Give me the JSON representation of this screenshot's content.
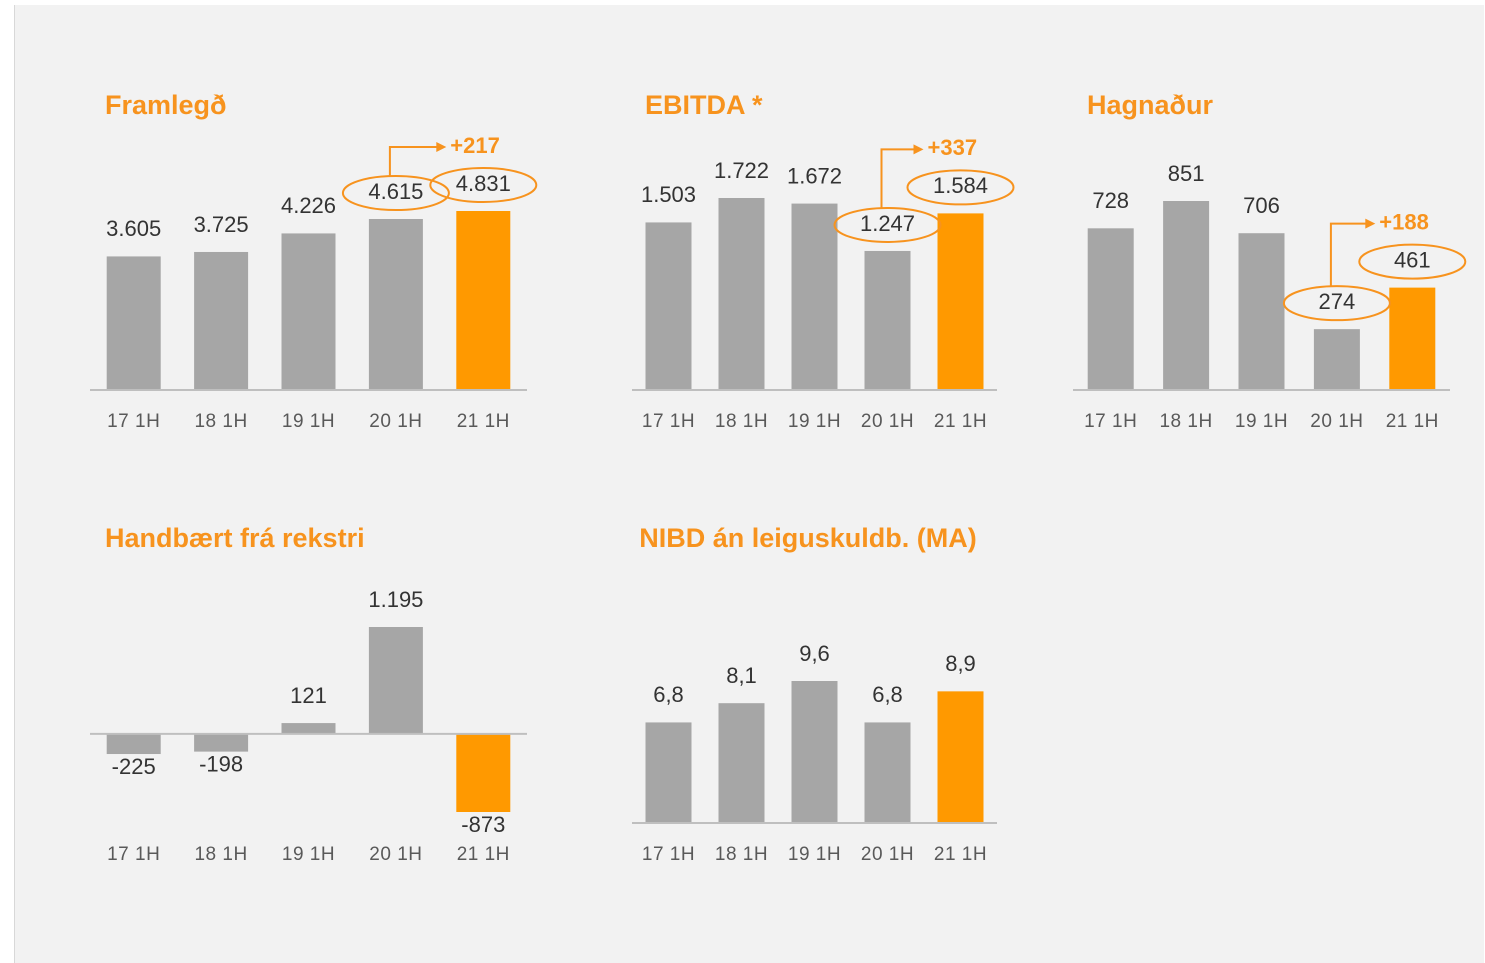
{
  "chart_data": [
    {
      "type": "bar",
      "title": "Framlegð",
      "categories": [
        "17 1H",
        "18 1H",
        "19 1H",
        "20 1H",
        "21 1H"
      ],
      "values": [
        3605,
        3725,
        4226,
        4615,
        4831
      ],
      "value_labels": [
        "3.605",
        "3.725",
        "4.226",
        "4.615",
        "4.831"
      ],
      "colors": [
        "#a6a6a6",
        "#a6a6a6",
        "#a6a6a6",
        "#a6a6a6",
        "#ff9900"
      ],
      "annotation": "+217"
    },
    {
      "type": "bar",
      "title": "EBITDA *",
      "categories": [
        "17 1H",
        "18 1H",
        "19 1H",
        "20 1H",
        "21 1H"
      ],
      "values": [
        1503,
        1722,
        1672,
        1247,
        1584
      ],
      "value_labels": [
        "1.503",
        "1.722",
        "1.672",
        "1.247",
        "1.584"
      ],
      "colors": [
        "#a6a6a6",
        "#a6a6a6",
        "#a6a6a6",
        "#a6a6a6",
        "#ff9900"
      ],
      "annotation": "+337"
    },
    {
      "type": "bar",
      "title": "Hagnaður",
      "categories": [
        "17 1H",
        "18 1H",
        "19 1H",
        "20 1H",
        "21 1H"
      ],
      "values": [
        728,
        851,
        706,
        274,
        461
      ],
      "colors": [
        "#a6a6a6",
        "#a6a6a6",
        "#a6a6a6",
        "#a6a6a6",
        "#ff9900"
      ],
      "annotation": "+188"
    },
    {
      "type": "bar",
      "title": "Handbært frá rekstri",
      "categories": [
        "17 1H",
        "18 1H",
        "19 1H",
        "20 1H",
        "21 1H"
      ],
      "values": [
        -225,
        -198,
        121,
        1195,
        -873
      ],
      "value_labels": [
        "-225",
        "-198",
        "121",
        "1.195",
        "-873"
      ],
      "colors": [
        "#a6a6a6",
        "#a6a6a6",
        "#a6a6a6",
        "#a6a6a6",
        "#ff9900"
      ]
    },
    {
      "type": "bar",
      "title": "NIBD án leiguskuldb. (MA)",
      "categories": [
        "17 1H",
        "18 1H",
        "19 1H",
        "20 1H",
        "21 1H"
      ],
      "values": [
        6.8,
        8.1,
        9.6,
        6.8,
        8.9
      ],
      "value_labels": [
        "6,8",
        "8,1",
        "9,6",
        "6,8",
        "8,9"
      ],
      "colors": [
        "#a6a6a6",
        "#a6a6a6",
        "#a6a6a6",
        "#a6a6a6",
        "#ff9900"
      ]
    }
  ]
}
